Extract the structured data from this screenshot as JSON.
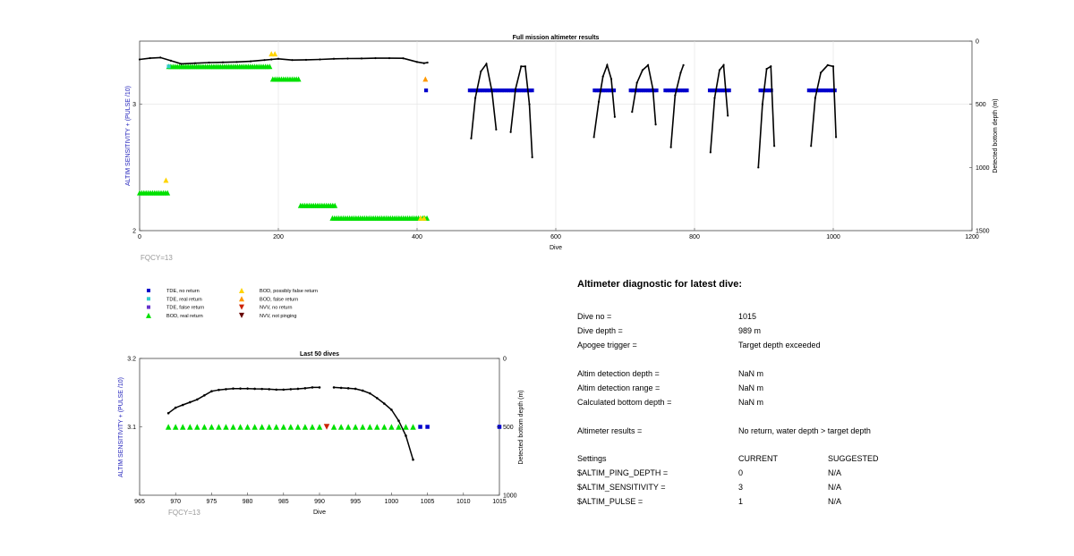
{
  "chart_data": [
    {
      "type": "scatter",
      "title": "Full mission altimeter results",
      "xlabel": "Dive",
      "ylabel": "ALTIM SENSITIVITY + (PULSE /10)",
      "y2label": "Detected bottom depth (m)",
      "xlim": [
        0,
        1200
      ],
      "ylim": [
        2,
        3.5
      ],
      "y2lim": [
        1500,
        0
      ],
      "y2_reversed": true,
      "xticks": [
        "0",
        "200",
        "400",
        "600",
        "800",
        "1000",
        "1200"
      ],
      "yticks": [
        "2",
        "3"
      ],
      "y2ticks": [
        "0",
        "500",
        "1000",
        "1500"
      ],
      "footnote": "FQCY=13",
      "grid": true,
      "legend_location": "below",
      "series": [
        {
          "name": "BOD, real return",
          "color": "#00e000",
          "marker": "triangle-up",
          "segments": [
            [
              0,
              42,
              2.3
            ],
            [
              42,
              190,
              3.3
            ],
            [
              192,
              232,
              3.2
            ],
            [
              232,
              283,
              2.2
            ],
            [
              278,
              415,
              2.1
            ]
          ]
        },
        {
          "name": "BOD, possibly false return",
          "color": "#ffd400",
          "marker": "triangle-up",
          "points": [
            [
              38,
              2.4
            ],
            [
              190,
              3.4
            ],
            [
              195,
              3.4
            ],
            [
              405,
              2.1
            ],
            [
              410,
              2.1
            ]
          ]
        },
        {
          "name": "BOD, false return",
          "color": "#ff9900",
          "marker": "triangle-up",
          "points": [
            [
              412,
              3.2
            ]
          ]
        },
        {
          "name": "TDE, no return",
          "color": "#0000cc",
          "marker": "square",
          "segments": [
            [
              476,
              566,
              3.11
            ],
            [
              656,
              686,
              3.11
            ],
            [
              708,
              748,
              3.11
            ],
            [
              758,
              790,
              3.11
            ],
            [
              822,
              850,
              3.11
            ],
            [
              895,
              912,
              3.11
            ],
            [
              965,
              1005,
              3.11
            ]
          ],
          "points": [
            [
              413,
              3.11
            ]
          ]
        },
        {
          "name": "TDE, real return",
          "color": "#33cccc",
          "marker": "square",
          "points": [
            [
              42,
              3.3
            ]
          ]
        },
        {
          "name": "TDE, false return",
          "color": "#6633cc",
          "marker": "square",
          "points": []
        },
        {
          "name": "NVV, no return",
          "color": "#cc2200",
          "marker": "triangle-down",
          "points": []
        },
        {
          "name": "NVV, not pinging",
          "color": "#660000",
          "marker": "triangle-down",
          "points": []
        }
      ],
      "depth_series": [
        {
          "x": [
            0,
            15,
            30,
            45,
            60,
            80,
            100,
            120,
            140,
            160,
            180,
            190,
            200,
            220,
            240,
            260,
            280,
            300,
            320,
            340,
            360,
            380,
            400,
            410,
            415
          ],
          "y": [
            145,
            135,
            130,
            155,
            180,
            175,
            170,
            168,
            165,
            160,
            150,
            145,
            140,
            150,
            148,
            145,
            140,
            138,
            137,
            135,
            135,
            136,
            165,
            175,
            170
          ]
        },
        {
          "x": [
            478,
            484,
            492,
            500,
            508,
            514
          ],
          "y": [
            770,
            450,
            240,
            180,
            400,
            700
          ]
        },
        {
          "x": [
            535,
            542,
            550,
            556,
            562,
            566
          ],
          "y": [
            720,
            380,
            200,
            200,
            500,
            920
          ]
        },
        {
          "x": [
            655,
            662,
            668,
            674,
            680,
            685
          ],
          "y": [
            760,
            480,
            280,
            190,
            300,
            600
          ]
        },
        {
          "x": [
            710,
            717,
            725,
            733,
            740,
            744
          ],
          "y": [
            560,
            330,
            230,
            190,
            380,
            660
          ]
        },
        {
          "x": [
            766,
            772,
            780,
            784
          ],
          "y": [
            840,
            430,
            250,
            190
          ]
        },
        {
          "x": [
            823,
            829,
            836,
            842,
            848
          ],
          "y": [
            880,
            450,
            230,
            190,
            590
          ]
        },
        {
          "x": [
            892,
            898,
            904,
            910,
            915
          ],
          "y": [
            1000,
            500,
            220,
            200,
            830
          ]
        },
        {
          "x": [
            968,
            974,
            982,
            992,
            1000,
            1004
          ],
          "y": [
            830,
            450,
            250,
            190,
            200,
            760
          ]
        }
      ]
    },
    {
      "type": "scatter",
      "title": "Last 50 dives",
      "xlabel": "Dive",
      "ylabel": "ALTIM SENSITIVITY + (PULSE /10)",
      "y2label": "Detected bottom depth (m)",
      "xlim": [
        965,
        1015
      ],
      "ylim": [
        3.0,
        3.2
      ],
      "y2lim": [
        1000,
        0
      ],
      "y2_reversed": true,
      "xticks": [
        "965",
        "970",
        "975",
        "980",
        "985",
        "990",
        "995",
        "1000",
        "1005",
        "1010",
        "1015"
      ],
      "yticks": [
        "3.1",
        "3.2"
      ],
      "y2ticks": [
        "0",
        "500",
        "1000"
      ],
      "footnote": "FQCY=13",
      "markers": {
        "bod_real": {
          "color": "#00e000",
          "y": 3.1,
          "x": [
            969,
            970,
            971,
            972,
            973,
            974,
            975,
            976,
            977,
            978,
            979,
            980,
            981,
            982,
            983,
            984,
            985,
            986,
            987,
            988,
            989,
            990,
            992,
            993,
            994,
            995,
            996,
            997,
            998,
            999,
            1000,
            1001,
            1002,
            1003
          ]
        },
        "nvv_no_return": {
          "color": "#cc2200",
          "y": 3.1,
          "x": [
            991
          ]
        },
        "tde_no_return": {
          "color": "#0000cc",
          "y": 3.1,
          "x": [
            1004,
            1005,
            1015
          ]
        }
      },
      "depth_series": [
        {
          "x": [
            969,
            970,
            971,
            972,
            973,
            974,
            975,
            976,
            977,
            978,
            979,
            980,
            981,
            982,
            983,
            984,
            985,
            986,
            987,
            988,
            989,
            990
          ],
          "y": [
            400,
            360,
            340,
            320,
            300,
            270,
            240,
            230,
            225,
            220,
            220,
            220,
            222,
            223,
            225,
            228,
            228,
            225,
            222,
            218,
            212,
            212
          ]
        },
        {
          "x": [
            992,
            993,
            994,
            995,
            996,
            997,
            998,
            999,
            1000,
            1001,
            1002,
            1003
          ],
          "y": [
            212,
            215,
            218,
            222,
            235,
            255,
            290,
            330,
            375,
            455,
            565,
            740
          ]
        }
      ]
    }
  ],
  "legend": {
    "items": [
      {
        "label": "TDE, no return",
        "color": "#0000cc",
        "marker": "square"
      },
      {
        "label": "TDE, real return",
        "color": "#33cccc",
        "marker": "square"
      },
      {
        "label": "TDE, false return",
        "color": "#6633cc",
        "marker": "square"
      },
      {
        "label": "BOD, real return",
        "color": "#00e000",
        "marker": "triangle-up"
      },
      {
        "label": "BOD, possibly false return",
        "color": "#ffd400",
        "marker": "triangle-up"
      },
      {
        "label": "BOD, false return",
        "color": "#ff9900",
        "marker": "triangle-up"
      },
      {
        "label": "NVV, no return",
        "color": "#cc2200",
        "marker": "triangle-down"
      },
      {
        "label": "NVV, not pinging",
        "color": "#660000",
        "marker": "triangle-down"
      }
    ]
  },
  "diagnostic": {
    "title": "Altimeter diagnostic for latest dive:",
    "rows": [
      {
        "label": "Dive no =",
        "value": "1015"
      },
      {
        "label": "Dive depth =",
        "value": "989 m"
      },
      {
        "label": "Apogee trigger =",
        "value": "Target depth exceeded"
      },
      {
        "label": "Altim detection depth =",
        "value": "NaN m"
      },
      {
        "label": "Altim detection range =",
        "value": "NaN m"
      },
      {
        "label": "Calculated bottom depth =",
        "value": "NaN m"
      },
      {
        "label": "Altimeter results =",
        "value": "No return, water depth > target depth"
      }
    ],
    "settings_header": {
      "label": "Settings",
      "current": "CURRENT",
      "suggested": "SUGGESTED"
    },
    "settings": [
      {
        "label": "$ALTIM_PING_DEPTH =",
        "current": "0",
        "suggested": "N/A"
      },
      {
        "label": "$ALTIM_SENSITIVITY =",
        "current": "3",
        "suggested": "N/A"
      },
      {
        "label": "$ALTIM_PULSE =",
        "current": "1",
        "suggested": "N/A"
      }
    ]
  }
}
